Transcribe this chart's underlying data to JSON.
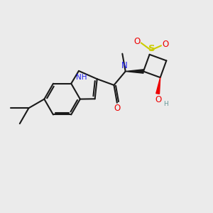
{
  "bg_color": "#ebebeb",
  "bond_color": "#1a1a1a",
  "n_color": "#2020ee",
  "o_color": "#ee0000",
  "s_color": "#cccc00",
  "oh_color": "#669999",
  "line_width": 1.5,
  "figsize": [
    3.0,
    3.0
  ],
  "dpi": 100,
  "xlim": [
    0,
    10
  ],
  "ylim": [
    0,
    10
  ],
  "font_size": 7.5,
  "font_size_small": 6.5,
  "font_size_label": 8.5
}
